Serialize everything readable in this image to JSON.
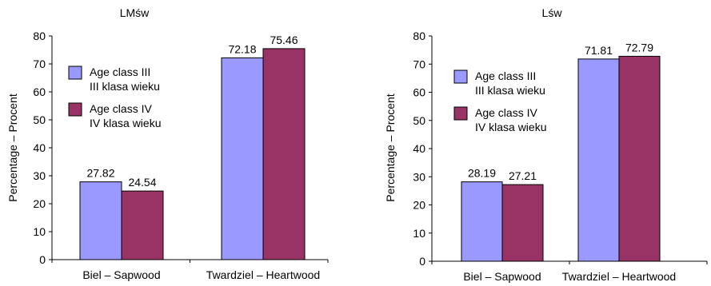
{
  "chart_data": [
    {
      "type": "bar",
      "title": "LMśw",
      "ylabel": "Percentage – Procent",
      "xlabel": "",
      "categories": [
        "Biel – Sapwood",
        "Twardziel – Heartwood"
      ],
      "ylim": [
        0,
        80
      ],
      "yticks": [
        "0",
        "10",
        "20",
        "30",
        "40",
        "50",
        "60",
        "70",
        "80"
      ],
      "series": [
        {
          "name": "Age class III\nIII klasa wieku",
          "legend_lines": [
            "Age class III",
            "III klasa wieku"
          ],
          "color": "#9999FF",
          "values": [
            27.82,
            72.18
          ],
          "labels": [
            "27.82",
            "72.18"
          ]
        },
        {
          "name": "Age class IV\nIV klasa wieku",
          "legend_lines": [
            "Age class IV",
            "IV klasa wieku"
          ],
          "color": "#993366",
          "values": [
            24.54,
            75.46
          ],
          "labels": [
            "24.54",
            "75.46"
          ]
        }
      ],
      "grid": false,
      "legend_position": "upper-left"
    },
    {
      "type": "bar",
      "title": "Lśw",
      "ylabel": "Percentage – Procent",
      "xlabel": "",
      "categories": [
        "Biel – Sapwood",
        "Twardziel – Heartwood"
      ],
      "ylim": [
        0,
        80
      ],
      "yticks": [
        "0",
        "10",
        "20",
        "30",
        "40",
        "50",
        "60",
        "70",
        "80"
      ],
      "series": [
        {
          "name": "Age class III\nIII klasa wieku",
          "legend_lines": [
            "Age class III",
            "III klasa wieku"
          ],
          "color": "#9999FF",
          "values": [
            28.19,
            71.81
          ],
          "labels": [
            "28.19",
            "71.81"
          ]
        },
        {
          "name": "Age class IV\nIV klasa wieku",
          "legend_lines": [
            "Age class IV",
            "IV klasa wieku"
          ],
          "color": "#993366",
          "values": [
            27.21,
            72.79
          ],
          "labels": [
            "27.21",
            "72.79"
          ]
        }
      ],
      "grid": false,
      "legend_position": "upper-left"
    }
  ]
}
